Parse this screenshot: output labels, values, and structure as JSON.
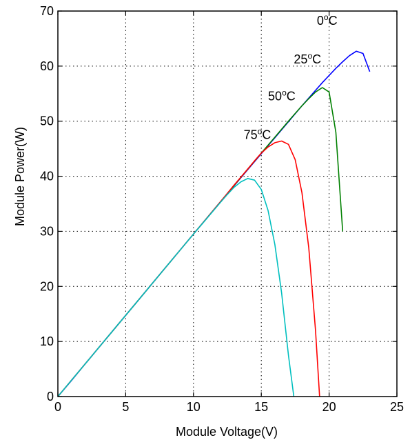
{
  "chart_data": {
    "type": "line",
    "title": "",
    "xlabel": "Module Voltage(V)",
    "ylabel": "Module Power(W)",
    "xlim": [
      0,
      25
    ],
    "ylim": [
      0,
      70
    ],
    "xticks": [
      0,
      5,
      10,
      15,
      20,
      25
    ],
    "yticks": [
      0,
      10,
      20,
      30,
      40,
      50,
      60,
      70
    ],
    "xtick_labels": [
      "0",
      "5",
      "10",
      "15",
      "20",
      "25"
    ],
    "ytick_labels": [
      "0",
      "10",
      "20",
      "30",
      "40",
      "50",
      "60",
      "70"
    ],
    "grid": true,
    "grid_style": "dotted",
    "series": [
      {
        "name": "0°C",
        "label_parts": {
          "num": "0",
          "sup": "o",
          "unit": "C"
        },
        "label_at": [
          19.1,
          67.5
        ],
        "color": "#0000ff",
        "x": [
          0,
          1,
          2,
          4,
          6,
          8,
          10,
          12,
          14,
          15,
          16,
          17,
          18,
          18.5,
          19,
          19.5,
          20,
          20.5,
          21,
          21.5,
          22,
          22.5,
          23
        ],
        "y": [
          0,
          2.9,
          5.9,
          11.8,
          17.7,
          23.6,
          29.5,
          35.4,
          41.2,
          44.1,
          47.0,
          49.9,
          52.8,
          54.2,
          55.6,
          57.0,
          58.3,
          59.6,
          60.8,
          61.9,
          62.7,
          62.3,
          59.0
        ]
      },
      {
        "name": "25°C",
        "label_parts": {
          "num": "25",
          "sup": "o",
          "unit": "C"
        },
        "label_at": [
          17.4,
          60.5
        ],
        "color": "#008000",
        "x": [
          0,
          1,
          2,
          4,
          6,
          8,
          10,
          12,
          14,
          15,
          16,
          17,
          17.5,
          18,
          18.5,
          19,
          19.5,
          20,
          20.5,
          21
        ],
        "y": [
          0,
          2.95,
          5.9,
          11.8,
          17.7,
          23.6,
          29.5,
          35.4,
          41.3,
          44.2,
          47.1,
          50.0,
          51.4,
          52.8,
          54.1,
          55.3,
          56.1,
          55.3,
          48.0,
          30.0
        ]
      },
      {
        "name": "50°C",
        "label_parts": {
          "num": "50",
          "sup": "o",
          "unit": "C"
        },
        "label_at": [
          15.5,
          53.8
        ],
        "color": "#ff0000",
        "x": [
          0,
          1,
          2,
          4,
          6,
          8,
          10,
          12,
          13,
          14,
          14.5,
          15,
          15.5,
          16,
          16.5,
          17,
          17.5,
          18,
          18.5,
          19,
          19.3
        ],
        "y": [
          0,
          2.95,
          5.9,
          11.8,
          17.7,
          23.6,
          29.5,
          35.4,
          38.4,
          41.3,
          42.8,
          44.2,
          45.3,
          46.1,
          46.4,
          45.8,
          43.0,
          37.0,
          27.0,
          12.0,
          0
        ]
      },
      {
        "name": "75°C",
        "label_parts": {
          "num": "75",
          "sup": "o",
          "unit": "C"
        },
        "label_at": [
          13.7,
          46.8
        ],
        "color": "#00bfbf",
        "x": [
          0,
          1,
          2,
          4,
          6,
          8,
          10,
          11,
          12,
          12.5,
          13,
          13.5,
          14,
          14.5,
          15,
          15.5,
          16,
          16.5,
          17,
          17.4
        ],
        "y": [
          0,
          2.95,
          5.9,
          11.8,
          17.7,
          23.6,
          29.5,
          32.4,
          35.3,
          36.7,
          38.0,
          39.0,
          39.6,
          39.3,
          37.6,
          33.8,
          27.6,
          18.8,
          7.5,
          0
        ]
      }
    ]
  }
}
